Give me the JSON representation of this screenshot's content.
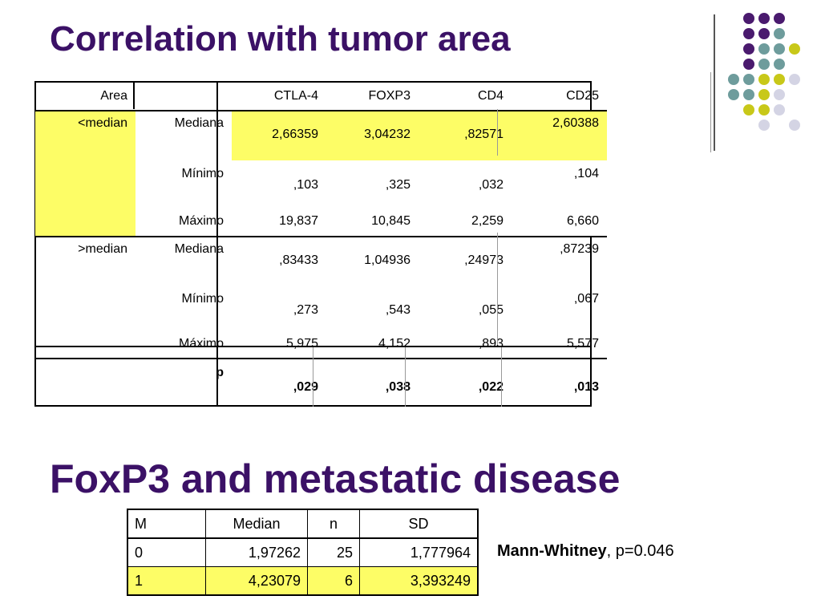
{
  "slide": {
    "title1": "Correlation with tumor area",
    "title2": "FoxP3 and metastatic disease"
  },
  "table1": {
    "headers": [
      "Area",
      "",
      "CTLA-4",
      "FOXP3",
      "CD4",
      "CD25"
    ],
    "group1": {
      "label": "<median",
      "rows": [
        {
          "stat": "Mediana",
          "values": [
            "2,66359",
            "3,04232",
            ",82571",
            "2,60388"
          ]
        },
        {
          "stat": "Mínimo",
          "values": [
            ",103",
            ",325",
            ",032",
            ",104"
          ]
        },
        {
          "stat": "Máximo",
          "values": [
            "19,837",
            "10,845",
            "2,259",
            "6,660"
          ]
        }
      ]
    },
    "group2": {
      "label": ">median",
      "rows": [
        {
          "stat": "Mediana",
          "values": [
            ",83433",
            "1,04936",
            ",24973",
            ",87239"
          ]
        },
        {
          "stat": "Mínimo",
          "values": [
            ",273",
            ",543",
            ",055",
            ",067"
          ]
        },
        {
          "stat": "Máximo",
          "values": [
            "5,975",
            "4,152",
            ",893",
            "5,577"
          ]
        }
      ]
    },
    "p_row": {
      "label": "p",
      "values": [
        ",029",
        ",038",
        ",022",
        ",013"
      ]
    }
  },
  "table2": {
    "headers": [
      "M",
      "Median",
      "n",
      "SD"
    ],
    "rows": [
      {
        "m": "0",
        "median": "1,97262",
        "n": "25",
        "sd": "1,777964"
      },
      {
        "m": "1",
        "median": "4,23079",
        "n": "6",
        "sd": "3,393249"
      }
    ]
  },
  "note": {
    "test": "Mann-Whitney",
    "rest": ", p=0.046"
  },
  "colors": {
    "title": "#3b1166",
    "highlight": "#fdfd66",
    "dot_purple": "#4a1a6e",
    "dot_teal": "#6e9c9c",
    "dot_olive": "#c8c819",
    "dot_lavender": "#d4d4e4"
  }
}
